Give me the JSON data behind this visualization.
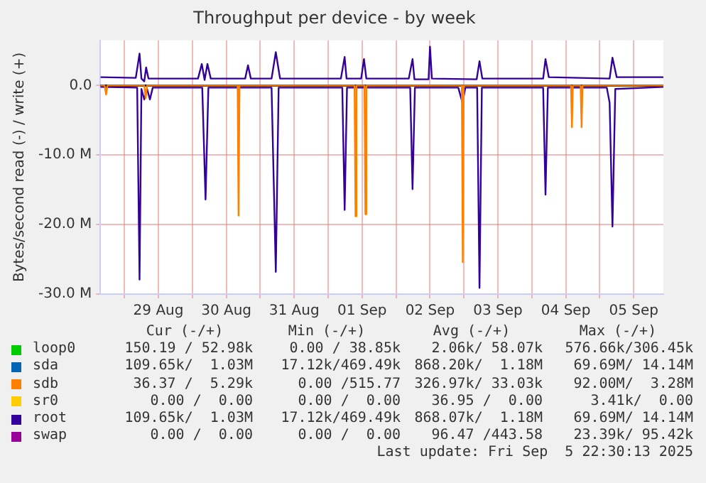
{
  "chart_data": {
    "type": "line",
    "title": "Throughput per device - by week",
    "ylabel": "Bytes/second read (-) / write (+)",
    "xlim": [
      "2025-08-28T15:30",
      "2025-09-05T22:30"
    ],
    "xticks": [
      {
        "value": "2025-08-29T00:00",
        "label": null
      },
      {
        "value": "2025-08-29T12:00",
        "label": "29 Aug"
      },
      {
        "value": "2025-08-30T00:00",
        "label": null
      },
      {
        "value": "2025-08-30T12:00",
        "label": "30 Aug"
      },
      {
        "value": "2025-08-31T00:00",
        "label": null
      },
      {
        "value": "2025-08-31T12:00",
        "label": "31 Aug"
      },
      {
        "value": "2025-09-01T00:00",
        "label": null
      },
      {
        "value": "2025-09-01T12:00",
        "label": "01 Sep"
      },
      {
        "value": "2025-09-02T00:00",
        "label": null
      },
      {
        "value": "2025-09-02T12:00",
        "label": "02 Sep"
      },
      {
        "value": "2025-09-03T00:00",
        "label": null
      },
      {
        "value": "2025-09-03T12:00",
        "label": "03 Sep"
      },
      {
        "value": "2025-09-04T00:00",
        "label": null
      },
      {
        "value": "2025-09-04T12:00",
        "label": "04 Sep"
      },
      {
        "value": "2025-09-05T00:00",
        "label": null
      },
      {
        "value": "2025-09-05T12:00",
        "label": "05 Sep"
      }
    ],
    "ylim": [
      -30,
      6.5
    ],
    "yticks": [
      {
        "value": 0,
        "label": "0.0"
      },
      {
        "value": -10,
        "label": "-10.0 M"
      },
      {
        "value": -20,
        "label": "-20.0 M"
      },
      {
        "value": -30,
        "label": "-30.0 M"
      }
    ],
    "grid": true,
    "legend": "bottom",
    "marker": "none",
    "line_style": "solid",
    "ref_lines": [
      {
        "axis": "y",
        "value": 0,
        "color": "#000000"
      }
    ],
    "series": [
      {
        "name": "loop0",
        "color": "#00cc00"
      },
      {
        "name": "sda",
        "color": "#0066b3"
      },
      {
        "name": "sdb",
        "color": "#ff8000",
        "x": [
          "2025-08-28T15:30",
          "2025-08-28T17:00",
          "2025-08-28T17:30",
          "2025-08-28T18:00",
          "2025-08-29T07:00",
          "2025-08-29T07:30",
          "2025-08-29T08:00",
          "2025-08-30T16:00",
          "2025-08-30T16:20",
          "2025-08-30T16:40",
          "2025-09-01T09:20",
          "2025-09-01T09:40",
          "2025-09-01T10:00",
          "2025-09-01T12:50",
          "2025-09-01T13:10",
          "2025-09-01T13:30",
          "2025-09-02T23:15",
          "2025-09-02T23:35",
          "2025-09-02T23:55",
          "2025-09-04T13:50",
          "2025-09-04T14:10",
          "2025-09-04T14:30",
          "2025-09-04T17:15",
          "2025-09-04T17:35",
          "2025-09-04T17:55",
          "2025-09-05T22:30"
        ],
        "values": [
          0,
          0,
          -1.3,
          0,
          0,
          -1.8,
          0,
          0,
          -18.7,
          0,
          0,
          -18.8,
          0,
          0,
          -18.5,
          0,
          0,
          -25.4,
          0,
          0,
          -6.0,
          0,
          0,
          -6.0,
          0,
          0
        ]
      },
      {
        "name": "sr0",
        "color": "#ffcc00"
      },
      {
        "name": "root",
        "color": "#330099",
        "x": [
          "2025-08-28T15:30",
          "2025-08-29T04:00",
          "2025-08-29T05:20",
          "2025-08-29T06:00",
          "2025-08-29T07:00",
          "2025-08-29T07:40",
          "2025-08-29T08:30",
          "2025-08-30T02:00",
          "2025-08-30T03:20",
          "2025-08-30T04:20",
          "2025-08-30T05:20",
          "2025-08-30T06:30",
          "2025-08-30T18:40",
          "2025-08-30T19:40",
          "2025-08-30T20:40",
          "2025-08-31T04:00",
          "2025-08-31T05:30",
          "2025-08-31T07:00",
          "2025-09-01T04:30",
          "2025-09-01T05:50",
          "2025-09-01T06:30",
          "2025-09-01T11:40",
          "2025-09-01T12:40",
          "2025-09-01T13:30",
          "2025-09-02T04:30",
          "2025-09-02T05:50",
          "2025-09-02T06:30",
          "2025-09-02T11:30",
          "2025-09-02T12:00",
          "2025-09-02T12:40",
          "2025-09-03T04:30",
          "2025-09-03T05:30",
          "2025-09-03T06:30",
          "2025-09-04T04:00",
          "2025-09-04T04:50",
          "2025-09-04T06:00",
          "2025-09-05T03:30",
          "2025-09-05T04:30",
          "2025-09-05T06:00",
          "2025-09-05T22:30"
        ],
        "values": [
          1.2,
          1.1,
          4.6,
          1.0,
          0.6,
          2.6,
          1.0,
          1.0,
          3.1,
          0.8,
          3.1,
          1.0,
          1.0,
          2.9,
          1.0,
          1.0,
          4.8,
          1.0,
          1.0,
          4.1,
          1.0,
          1.0,
          3.8,
          1.0,
          1.0,
          3.8,
          0.9,
          0.9,
          5.6,
          1.0,
          0.9,
          3.5,
          1.0,
          1.0,
          3.8,
          1.2,
          1.0,
          4.0,
          1.2,
          1.2
        ]
      },
      {
        "color": "#330099",
        "x": [
          "2025-08-28T15:30",
          "2025-08-29T04:30",
          "2025-08-29T05:20",
          "2025-08-29T06:00",
          "2025-08-29T07:00",
          "2025-08-29T08:00",
          "2025-08-29T09:00",
          "2025-08-29T10:00",
          "2025-08-30T03:30",
          "2025-08-30T04:40",
          "2025-08-30T05:40",
          "2025-08-31T04:00",
          "2025-08-31T05:30",
          "2025-08-31T06:30",
          "2025-09-01T05:00",
          "2025-09-01T05:50",
          "2025-09-01T06:40",
          "2025-09-02T05:00",
          "2025-09-02T05:50",
          "2025-09-02T06:40",
          "2025-09-02T22:00",
          "2025-09-02T23:30",
          "2025-09-03T00:30",
          "2025-09-03T04:40",
          "2025-09-03T05:30",
          "2025-09-03T06:20",
          "2025-09-04T04:00",
          "2025-09-04T04:50",
          "2025-09-04T05:40",
          "2025-09-05T02:30",
          "2025-09-05T03:30",
          "2025-09-05T04:30",
          "2025-09-05T05:30",
          "2025-09-05T22:30"
        ],
        "values": [
          -0.2,
          -0.3,
          -27.9,
          -0.5,
          -2.0,
          -0.5,
          -2.0,
          -0.3,
          -0.3,
          -16.4,
          -0.3,
          -0.3,
          -26.8,
          -0.3,
          -0.3,
          -17.9,
          -0.3,
          -0.3,
          -14.9,
          -0.3,
          -0.3,
          -2.5,
          -0.3,
          -0.3,
          -29.1,
          -0.3,
          -0.3,
          -15.7,
          -0.3,
          -0.3,
          -2.5,
          -20.3,
          -0.5,
          -0.2
        ]
      },
      {
        "name": "swap",
        "color": "#990099"
      }
    ],
    "annotations": [
      "Cur (-/+)",
      "Min (-/+)",
      "Avg (-/+)",
      "Max (-/+)",
      "150.19 / 52.98k",
      "0.00 / 38.85k",
      "2.06k/ 58.07k",
      "576.66k/306.45k",
      "109.65k/  1.03M",
      "17.12k/469.49k",
      "868.20k/  1.18M",
      "69.69M/ 14.14M",
      "36.37 /  5.29k",
      "0.00 /515.77",
      "326.97k/ 33.03k",
      "92.00M/  3.28M",
      "0.00 /  0.00",
      "0.00 /  0.00",
      "36.95 /  0.00",
      "3.41k/  0.00",
      "109.65k/  1.03M",
      "17.12k/469.49k",
      "868.07k/  1.18M",
      "69.69M/ 14.14M",
      "0.00 /  0.00",
      "0.00 /  0.00",
      "96.47 /443.58",
      "23.39k/ 95.42k",
      "Last update: Fri Sep  5 22:30:13 2025"
    ]
  }
}
